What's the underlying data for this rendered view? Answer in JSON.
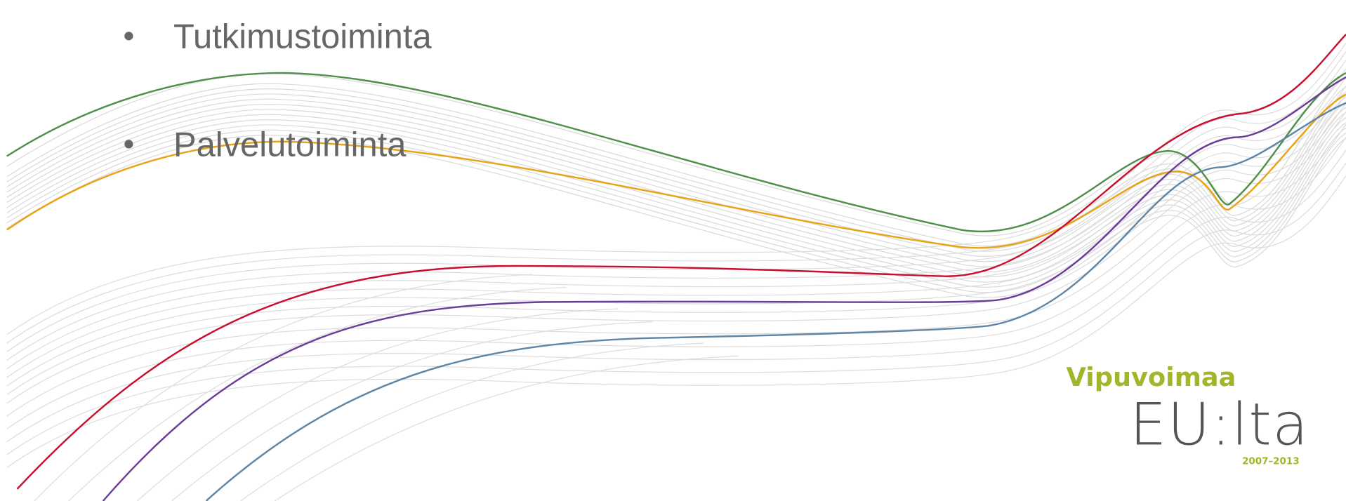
{
  "bullets": [
    "Tutkimustoiminta",
    "Palvelutoiminta"
  ],
  "logo": {
    "line1": "Vipuvoimaa",
    "line2": "EU:lta",
    "years": "2007–2013"
  }
}
